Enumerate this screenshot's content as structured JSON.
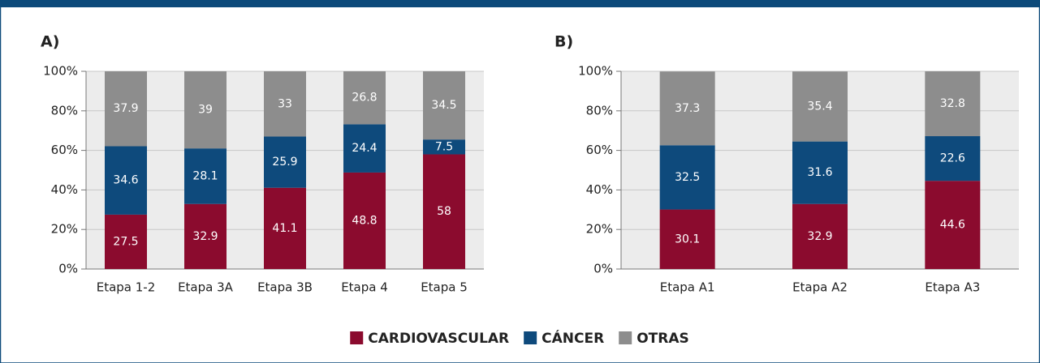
{
  "chart_data": [
    {
      "type": "stacked_bar",
      "title": "A)",
      "categories": [
        "Etapa 1-2",
        "Etapa 3A",
        "Etapa 3B",
        "Etapa 4",
        "Etapa 5"
      ],
      "series": [
        {
          "name": "CARDIOVASCULAR",
          "color": "#8b0b2e",
          "values": [
            27.5,
            32.9,
            41.1,
            48.8,
            58
          ]
        },
        {
          "name": "CÁNCER",
          "color": "#0e4a7c",
          "values": [
            34.6,
            28.1,
            25.9,
            24.4,
            7.5
          ]
        },
        {
          "name": "OTRAS",
          "color": "#8d8d8d",
          "values": [
            37.9,
            39,
            33,
            26.8,
            34.5
          ]
        }
      ],
      "ylim": [
        0,
        100
      ],
      "yticks": [
        {
          "value": 0,
          "label": "0%"
        },
        {
          "value": 20,
          "label": "20%"
        },
        {
          "value": 40,
          "label": "40%"
        },
        {
          "value": 60,
          "label": "60%"
        },
        {
          "value": 80,
          "label": "80%"
        },
        {
          "value": 100,
          "label": "100%"
        }
      ],
      "grid": true
    },
    {
      "type": "stacked_bar",
      "title": "B)",
      "categories": [
        "Etapa A1",
        "Etapa A2",
        "Etapa A3"
      ],
      "series": [
        {
          "name": "CARDIOVASCULAR",
          "color": "#8b0b2e",
          "values": [
            30.1,
            32.9,
            44.6
          ]
        },
        {
          "name": "CÁNCER",
          "color": "#0e4a7c",
          "values": [
            32.5,
            31.6,
            22.6
          ]
        },
        {
          "name": "OTRAS",
          "color": "#8d8d8d",
          "values": [
            37.3,
            35.4,
            32.8
          ]
        }
      ],
      "ylim": [
        0,
        100
      ],
      "yticks": [
        {
          "value": 0,
          "label": "0%"
        },
        {
          "value": 20,
          "label": "20%"
        },
        {
          "value": 40,
          "label": "40%"
        },
        {
          "value": 60,
          "label": "60%"
        },
        {
          "value": 80,
          "label": "80%"
        },
        {
          "value": 100,
          "label": "100%"
        }
      ],
      "grid": true
    }
  ]
}
